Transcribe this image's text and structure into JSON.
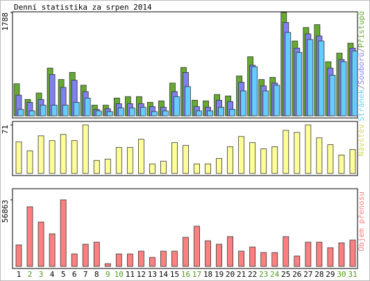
{
  "chart_data": [
    {
      "type": "grouped-bar",
      "title": "Denní statistika za srpen 2014",
      "legend_separator": "/",
      "ylim": [
        0,
        1788
      ],
      "yticks": [
        1788
      ],
      "series": [
        {
          "name": "Přístupů",
          "color": "#66aa33",
          "values": [
            555,
            284,
            395,
            826,
            629,
            752,
            530,
            185,
            185,
            308,
            333,
            333,
            234,
            259,
            567,
            838,
            271,
            259,
            370,
            345,
            690,
            1023,
            629,
            666,
            1788,
            1295,
            1529,
            1578,
            937,
            1085,
            1258
          ]
        },
        {
          "name": "Souborů",
          "color": "#8080f0",
          "values": [
            358,
            234,
            284,
            715,
            493,
            617,
            419,
            111,
            123,
            210,
            210,
            210,
            160,
            148,
            419,
            752,
            160,
            148,
            271,
            247,
            580,
            876,
            518,
            567,
            1616,
            1172,
            1418,
            1381,
            826,
            974,
            1172
          ]
        },
        {
          "name": "Stránek",
          "color": "#66ccff",
          "values": [
            111,
            86,
            185,
            185,
            185,
            234,
            308,
            86,
            74,
            136,
            136,
            148,
            74,
            86,
            333,
            506,
            86,
            86,
            148,
            111,
            432,
            850,
            432,
            530,
            1443,
            1097,
            1320,
            1295,
            703,
            937,
            1122
          ]
        }
      ]
    },
    {
      "type": "bar",
      "label": "Návštěv",
      "color": "#ffff99",
      "label_color": "#d8d860",
      "ylim": [
        0,
        71
      ],
      "yticks": [
        71
      ],
      "values": [
        46,
        33,
        55,
        48,
        57,
        48,
        71,
        19,
        21,
        38,
        38,
        50,
        14,
        18,
        45,
        41,
        14,
        14,
        22,
        39,
        54,
        45,
        36,
        39,
        63,
        60,
        71,
        52,
        42,
        27,
        35
      ]
    },
    {
      "type": "bar",
      "label": "Objem přenosu",
      "color": "#ff8080",
      "label_color": "#ff8080",
      "ylim": [
        0,
        56863
      ],
      "yticks": [
        56863
      ],
      "values": [
        18360,
        50940,
        37900,
        27840,
        56863,
        10660,
        18950,
        20730,
        2370,
        10660,
        10660,
        13030,
        7700,
        13030,
        13030,
        24880,
        34350,
        21910,
        18950,
        25470,
        13030,
        16580,
        11850,
        11850,
        25470,
        8880,
        20730,
        20730,
        15990,
        20140,
        22510
      ],
      "categories": [
        "1",
        "2",
        "3",
        "4",
        "5",
        "6",
        "7",
        "8",
        "9",
        "10",
        "11",
        "12",
        "13",
        "14",
        "15",
        "16",
        "17",
        "18",
        "19",
        "20",
        "21",
        "22",
        "23",
        "24",
        "25",
        "26",
        "27",
        "28",
        "29",
        "30",
        "31"
      ],
      "category_colors": [
        "#000",
        "#4c9a1a",
        "#4c9a1a",
        "#000",
        "#000",
        "#000",
        "#000",
        "#000",
        "#4c9a1a",
        "#4c9a1a",
        "#000",
        "#000",
        "#000",
        "#000",
        "#000",
        "#4c9a1a",
        "#4c9a1a",
        "#000",
        "#000",
        "#000",
        "#000",
        "#000",
        "#4c9a1a",
        "#4c9a1a",
        "#000",
        "#000",
        "#000",
        "#000",
        "#000",
        "#4c9a1a",
        "#4c9a1a"
      ]
    }
  ]
}
